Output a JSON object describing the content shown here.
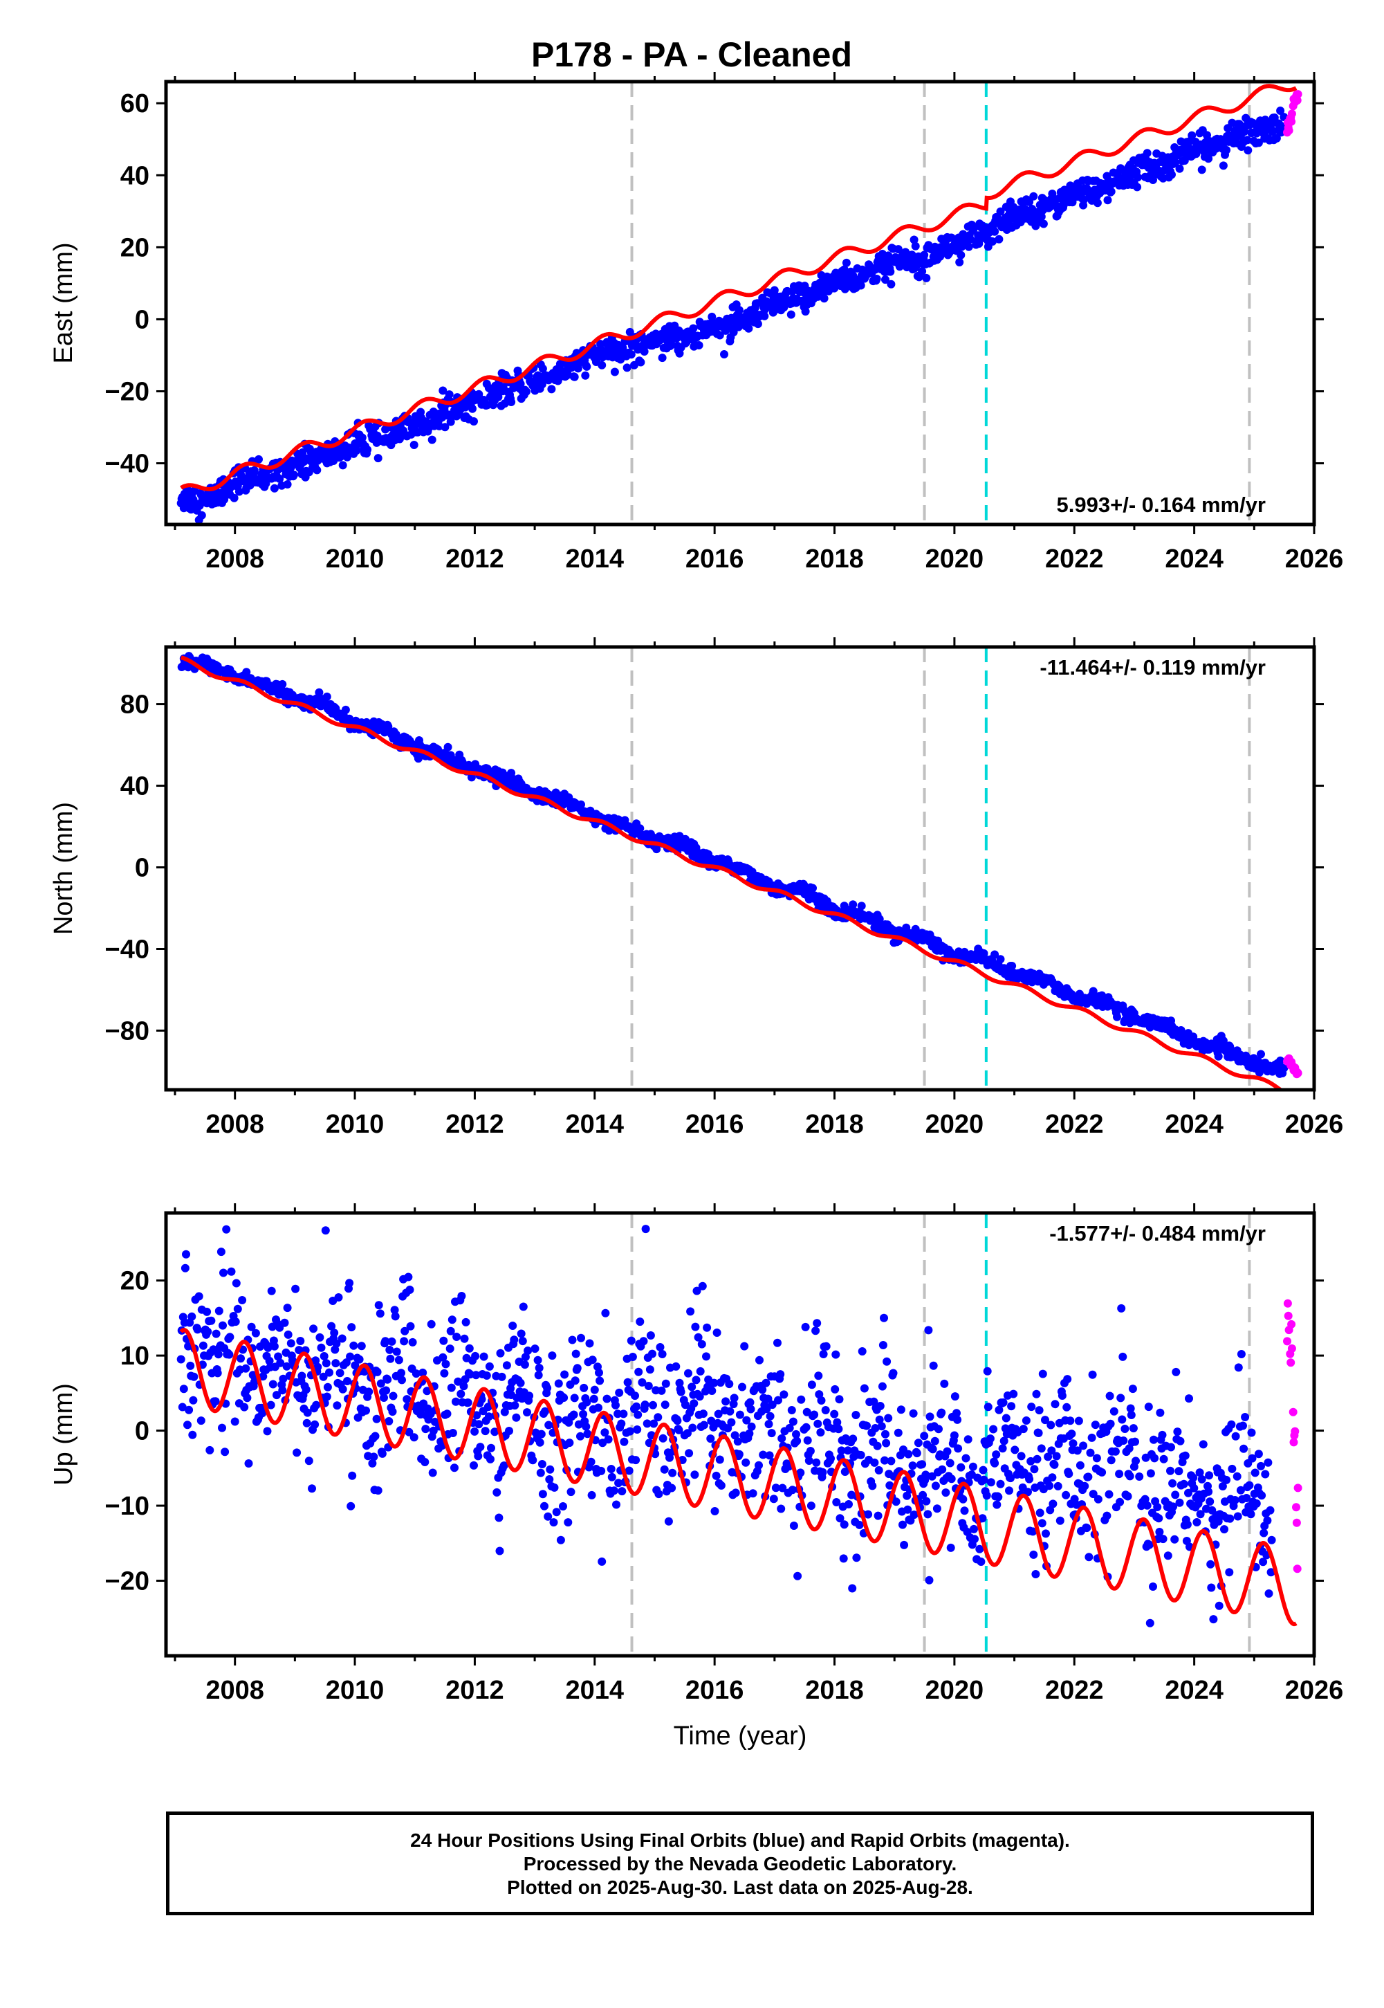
{
  "page_title": "P178  - PA - Cleaned",
  "footer": {
    "line1": "24 Hour Positions Using Final Orbits (blue) and Rapid Orbits (magenta).",
    "line2": "Processed by the Nevada Geodetic Laboratory.",
    "line3": "Plotted on 2025-Aug-30. Last data on 2025-Aug-28."
  },
  "colors": {
    "final_orbits": "#0000ff",
    "rapid_orbits": "#ff00ff",
    "model_fit": "#ff0000",
    "equipment_change_line": "#c0c0c0",
    "event_line": "#00d8d8"
  },
  "chart_data": [
    {
      "type": "scatter",
      "ylabel": "East (mm)",
      "xlabel": "",
      "xlim": [
        2006.85,
        2026.0
      ],
      "ylim": [
        -57,
        66
      ],
      "xticks": [
        2008,
        2010,
        2012,
        2014,
        2016,
        2018,
        2020,
        2022,
        2024,
        2026
      ],
      "yticks": [
        -40,
        -20,
        0,
        20,
        40,
        60
      ],
      "rate_label": "5.993+/- 0.164 mm/yr",
      "rate_position": "bottom-right",
      "vertical_lines": {
        "gray": [
          2014.62,
          2019.5,
          2024.92
        ],
        "cyan": [
          2020.53
        ]
      },
      "series": [
        {
          "name": "Final Orbits",
          "color": "#0000ff",
          "x": [
            2007.1,
            2007.5,
            2008.0,
            2008.5,
            2009.0,
            2009.5,
            2010.0,
            2010.5,
            2011.0,
            2011.5,
            2012.0,
            2012.5,
            2013.0,
            2013.5,
            2014.0,
            2014.5,
            2015.0,
            2015.5,
            2016.0,
            2016.5,
            2017.0,
            2017.5,
            2018.0,
            2018.5,
            2019.0,
            2019.5,
            2020.0,
            2020.5,
            2021.0,
            2021.5,
            2022.0,
            2022.5,
            2023.0,
            2023.5,
            2024.0,
            2024.5,
            2025.0,
            2025.5
          ],
          "y": [
            -49,
            -51,
            -45,
            -44,
            -40,
            -38,
            -35,
            -33,
            -30,
            -26,
            -23,
            -20,
            -17,
            -14,
            -10,
            -9,
            -5,
            -5,
            -2,
            -1,
            4,
            6,
            11,
            12,
            16,
            18,
            21,
            23,
            29,
            31,
            35,
            36,
            41,
            43,
            47,
            49,
            53,
            53
          ]
        },
        {
          "name": "Rapid Orbits",
          "color": "#ff00ff",
          "x": [
            2025.55,
            2025.6,
            2025.65,
            2025.7
          ],
          "y": [
            53,
            56,
            60,
            62
          ]
        }
      ],
      "model": {
        "rate": 5.993,
        "offset": -48.5,
        "t0": 2007.1,
        "annual_amp": 1.8,
        "steps": [
          {
            "t": 2020.53,
            "dy": 3.0
          }
        ]
      }
    },
    {
      "type": "scatter",
      "ylabel": "North (mm)",
      "xlabel": "",
      "xlim": [
        2006.85,
        2026.0
      ],
      "ylim": [
        -109,
        108
      ],
      "xticks": [
        2008,
        2010,
        2012,
        2014,
        2016,
        2018,
        2020,
        2022,
        2024,
        2026
      ],
      "yticks": [
        -80,
        -40,
        0,
        40,
        80
      ],
      "rate_label": "-11.464+/- 0.119 mm/yr",
      "rate_position": "top-right",
      "vertical_lines": {
        "gray": [
          2014.62,
          2019.5,
          2024.92
        ],
        "cyan": [
          2020.53
        ]
      },
      "series": [
        {
          "name": "Final Orbits",
          "color": "#0000ff",
          "x": [
            2007.1,
            2007.5,
            2008.0,
            2008.5,
            2009.0,
            2009.5,
            2010.0,
            2010.5,
            2011.0,
            2011.5,
            2012.0,
            2012.5,
            2013.0,
            2013.5,
            2014.0,
            2014.5,
            2015.0,
            2015.5,
            2016.0,
            2016.5,
            2017.0,
            2017.5,
            2018.0,
            2018.5,
            2019.0,
            2019.5,
            2020.0,
            2020.5,
            2021.0,
            2021.5,
            2022.0,
            2022.5,
            2023.0,
            2023.5,
            2024.0,
            2024.5,
            2025.0,
            2025.5
          ],
          "y": [
            101,
            100,
            93,
            90,
            82,
            80,
            70,
            68,
            58,
            55,
            47,
            44,
            35,
            33,
            24,
            20,
            12,
            11,
            2,
            -1,
            -11,
            -11,
            -22,
            -23,
            -33,
            -34,
            -44,
            -44,
            -53,
            -55,
            -64,
            -65,
            -74,
            -77,
            -86,
            -89,
            -97,
            -98
          ]
        },
        {
          "name": "Rapid Orbits",
          "color": "#ff00ff",
          "x": [
            2025.55,
            2025.6,
            2025.65,
            2025.7
          ],
          "y": [
            -94,
            -96,
            -99,
            -101
          ]
        }
      ],
      "model": {
        "rate": -11.464,
        "offset": 101.5,
        "t0": 2007.1,
        "annual_amp": 1.5,
        "steps": []
      }
    },
    {
      "type": "scatter",
      "ylabel": "Up (mm)",
      "xlabel": "Time (year)",
      "xlim": [
        2006.85,
        2026.0
      ],
      "ylim": [
        -30,
        29
      ],
      "xticks": [
        2008,
        2010,
        2012,
        2014,
        2016,
        2018,
        2020,
        2022,
        2024,
        2026
      ],
      "yticks": [
        -20,
        -10,
        0,
        10,
        20
      ],
      "rate_label": "-1.577+/- 0.484 mm/yr",
      "rate_position": "top-right",
      "vertical_lines": {
        "gray": [
          2014.62,
          2019.5,
          2024.92
        ],
        "cyan": [
          2020.53
        ]
      },
      "series": [
        {
          "name": "Final Orbits",
          "color": "#0000ff",
          "x": [
            2007.1,
            2007.75,
            2008.3,
            2008.8,
            2009.3,
            2009.8,
            2010.3,
            2010.8,
            2011.3,
            2011.8,
            2012.3,
            2012.8,
            2013.3,
            2013.8,
            2014.3,
            2014.8,
            2015.3,
            2015.8,
            2016.3,
            2016.8,
            2017.3,
            2017.8,
            2018.3,
            2018.8,
            2019.3,
            2019.8,
            2020.3,
            2020.8,
            2021.3,
            2021.8,
            2022.3,
            2022.8,
            2023.3,
            2023.8,
            2024.3,
            2024.8,
            2025.3
          ],
          "y": [
            7,
            15,
            5,
            13,
            4,
            11,
            2,
            10,
            1,
            8,
            -1,
            7,
            -3,
            5,
            -4,
            7,
            -2,
            6,
            -3,
            4,
            -5,
            3,
            -7,
            1,
            -8,
            -2,
            -11,
            2,
            -8,
            0,
            -9,
            -1,
            -11,
            -3,
            -12,
            -5,
            -12
          ]
        },
        {
          "name": "Rapid Orbits",
          "color": "#ff00ff",
          "x": [
            2025.55,
            2025.6,
            2025.65,
            2025.7
          ],
          "y": [
            15,
            10,
            2,
            -12
          ]
        }
      ],
      "model": {
        "rate": -1.577,
        "offset": 8.5,
        "t0": 2007.1,
        "annual_amp": 5.0,
        "steps": []
      }
    }
  ]
}
